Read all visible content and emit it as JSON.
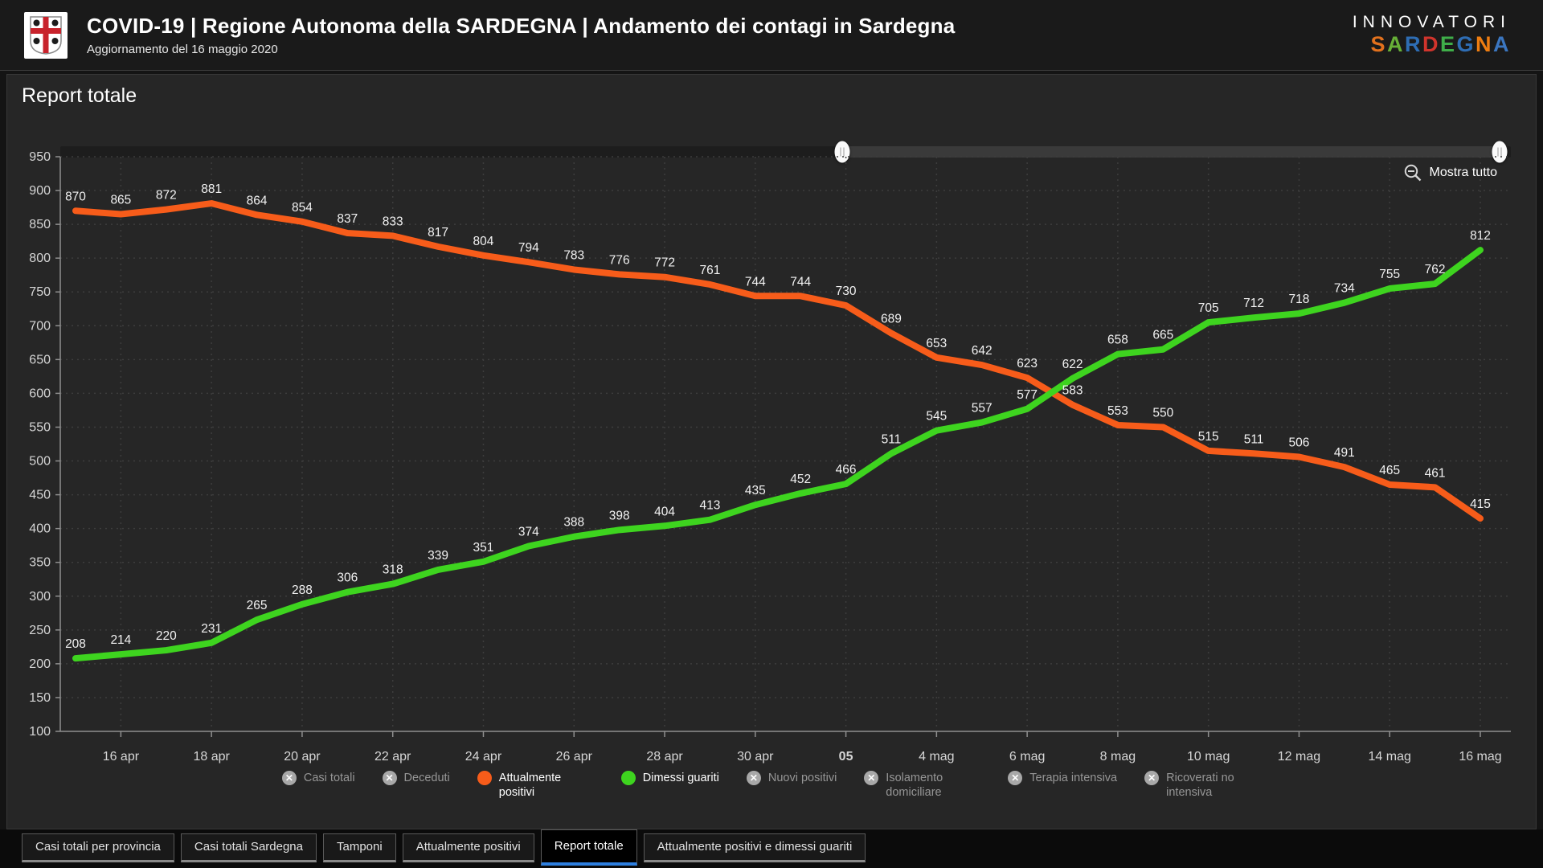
{
  "header": {
    "title": "COVID-19 | Regione Autonoma della SARDEGNA | Andamento dei contagi in Sardegna",
    "subtitle": "Aggiornamento del 16 maggio 2020",
    "brand": {
      "line1": "INNOVATORI",
      "line2": "SARDEGNA",
      "line2_colors": [
        "#e2711d",
        "#67b037",
        "#2e6db4",
        "#d0342c",
        "#3fae49",
        "#2e6db4",
        "#ee7d11",
        "#3b76c0"
      ]
    }
  },
  "panel": {
    "title": "Report totale",
    "show_all_label": "Mostra tutto"
  },
  "slider": {
    "start_pct": 53.9,
    "end_pct": 99.2
  },
  "chart_data": {
    "type": "line",
    "title": "Report totale",
    "ylim": [
      100,
      950
    ],
    "y_ticks": [
      100,
      150,
      200,
      250,
      300,
      350,
      400,
      450,
      500,
      550,
      600,
      650,
      700,
      750,
      800,
      850,
      900,
      950
    ],
    "grid": "dotted",
    "legend_position": "bottom",
    "x_ticks": [
      {
        "index": 1,
        "label": "16 apr"
      },
      {
        "index": 3,
        "label": "18 apr"
      },
      {
        "index": 5,
        "label": "20 apr"
      },
      {
        "index": 7,
        "label": "22 apr"
      },
      {
        "index": 9,
        "label": "24 apr"
      },
      {
        "index": 11,
        "label": "26 apr"
      },
      {
        "index": 13,
        "label": "28 apr"
      },
      {
        "index": 15,
        "label": "30 apr"
      },
      {
        "index": 17,
        "label": "05",
        "bold": true
      },
      {
        "index": 19,
        "label": "4 mag"
      },
      {
        "index": 21,
        "label": "6 mag"
      },
      {
        "index": 23,
        "label": "8 mag"
      },
      {
        "index": 25,
        "label": "10 mag"
      },
      {
        "index": 27,
        "label": "12 mag"
      },
      {
        "index": 29,
        "label": "14 mag"
      },
      {
        "index": 31,
        "label": "16 mag"
      }
    ],
    "series": [
      {
        "name": "Attualmente positivi",
        "color": "#f75c1a",
        "values": [
          870,
          865,
          872,
          881,
          864,
          854,
          837,
          833,
          817,
          804,
          794,
          783,
          776,
          772,
          761,
          744,
          744,
          730,
          689,
          653,
          642,
          623,
          583,
          553,
          550,
          515,
          511,
          506,
          491,
          465,
          461,
          415
        ]
      },
      {
        "name": "Dimessi guariti",
        "color": "#3ed41f",
        "values": [
          208,
          214,
          220,
          231,
          265,
          288,
          306,
          318,
          339,
          351,
          374,
          388,
          398,
          404,
          413,
          435,
          452,
          466,
          511,
          545,
          557,
          577,
          622,
          658,
          665,
          705,
          712,
          718,
          734,
          755,
          762,
          812
        ]
      }
    ]
  },
  "legend": {
    "items": [
      {
        "label": "Casi totali",
        "enabled": false
      },
      {
        "label": "Deceduti",
        "enabled": false
      },
      {
        "label": "Attualmente positivi",
        "enabled": true,
        "color": "#f75c1a"
      },
      {
        "label": "Dimessi guariti",
        "enabled": true,
        "color": "#3ed41f"
      },
      {
        "label": "Nuovi positivi",
        "enabled": false
      },
      {
        "label": "Isolamento domiciliare",
        "enabled": false
      },
      {
        "label": "Terapia intensiva",
        "enabled": false
      },
      {
        "label": "Ricoverati no intensiva",
        "enabled": false
      }
    ]
  },
  "tabs": [
    {
      "label": "Casi totali per provincia",
      "active": false
    },
    {
      "label": "Casi totali Sardegna",
      "active": false
    },
    {
      "label": "Tamponi",
      "active": false
    },
    {
      "label": "Attualmente positivi",
      "active": false
    },
    {
      "label": "Report totale",
      "active": true
    },
    {
      "label": "Attualmente positivi e dimessi guariti",
      "active": false
    }
  ]
}
